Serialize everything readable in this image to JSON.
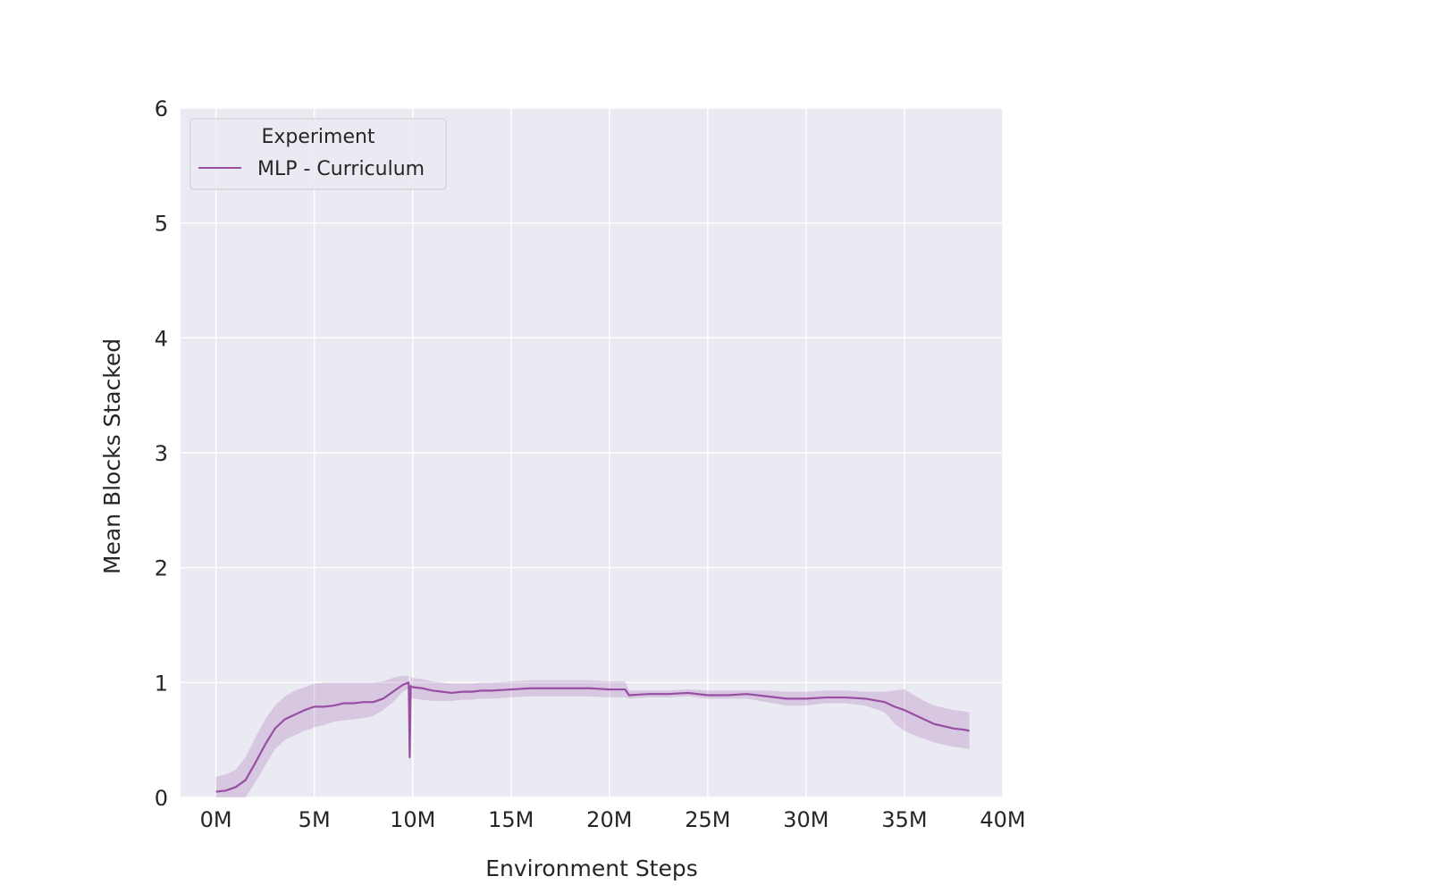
{
  "chart_data": {
    "type": "line",
    "title": "",
    "xlabel": "Environment Steps",
    "ylabel": "Mean Blocks Stacked",
    "xlim": [
      -1.8,
      40
    ],
    "ylim": [
      0,
      6
    ],
    "x_ticks": [
      0,
      5,
      10,
      15,
      20,
      25,
      30,
      35,
      40
    ],
    "x_tick_labels": [
      "0M",
      "5M",
      "10M",
      "15M",
      "20M",
      "25M",
      "30M",
      "35M",
      "40M"
    ],
    "y_ticks": [
      0,
      1,
      2,
      3,
      4,
      5,
      6
    ],
    "y_tick_labels": [
      "0",
      "1",
      "2",
      "3",
      "4",
      "5",
      "6"
    ],
    "x_unit": "M environment steps",
    "grid": true,
    "background": "#eaeaf2",
    "legend": {
      "title": "Experiment",
      "position": "top-left"
    },
    "series": [
      {
        "name": "MLP - Curriculum",
        "color": "#984ea3",
        "x": [
          0.0,
          0.5,
          1.0,
          1.5,
          2.0,
          2.5,
          3.0,
          3.5,
          4.0,
          4.5,
          5.0,
          5.5,
          6.0,
          6.5,
          7.0,
          7.5,
          8.0,
          8.5,
          9.0,
          9.5,
          9.8,
          9.85,
          9.9,
          10.0,
          10.5,
          11.0,
          11.5,
          12.0,
          12.5,
          13.0,
          13.5,
          14.0,
          15.0,
          16.0,
          17.0,
          18.0,
          19.0,
          20.0,
          20.8,
          21.0,
          22.0,
          23.0,
          24.0,
          25.0,
          26.0,
          27.0,
          28.0,
          29.0,
          30.0,
          31.0,
          32.0,
          33.0,
          34.0,
          34.5,
          35.0,
          35.5,
          36.0,
          36.5,
          37.0,
          37.5,
          38.0,
          38.3
        ],
        "y": [
          0.05,
          0.06,
          0.09,
          0.15,
          0.3,
          0.46,
          0.6,
          0.68,
          0.72,
          0.76,
          0.79,
          0.79,
          0.8,
          0.82,
          0.82,
          0.83,
          0.83,
          0.86,
          0.92,
          0.98,
          1.0,
          0.35,
          0.97,
          0.96,
          0.95,
          0.93,
          0.92,
          0.91,
          0.92,
          0.92,
          0.93,
          0.93,
          0.94,
          0.95,
          0.95,
          0.95,
          0.95,
          0.94,
          0.94,
          0.89,
          0.9,
          0.9,
          0.91,
          0.89,
          0.89,
          0.9,
          0.88,
          0.86,
          0.86,
          0.87,
          0.87,
          0.86,
          0.83,
          0.79,
          0.76,
          0.72,
          0.68,
          0.64,
          0.62,
          0.6,
          0.59,
          0.58
        ],
        "ci_low": [
          0.0,
          0.0,
          0.0,
          0.0,
          0.13,
          0.28,
          0.42,
          0.5,
          0.54,
          0.58,
          0.61,
          0.63,
          0.66,
          0.67,
          0.68,
          0.69,
          0.71,
          0.76,
          0.83,
          0.92,
          0.95,
          0.25,
          0.87,
          0.86,
          0.85,
          0.84,
          0.84,
          0.84,
          0.85,
          0.85,
          0.86,
          0.86,
          0.87,
          0.88,
          0.88,
          0.88,
          0.88,
          0.87,
          0.87,
          0.86,
          0.87,
          0.87,
          0.88,
          0.86,
          0.86,
          0.86,
          0.83,
          0.8,
          0.8,
          0.82,
          0.82,
          0.8,
          0.74,
          0.64,
          0.58,
          0.54,
          0.51,
          0.48,
          0.46,
          0.44,
          0.43,
          0.42
        ],
        "ci_high": [
          0.18,
          0.2,
          0.24,
          0.35,
          0.52,
          0.68,
          0.8,
          0.88,
          0.93,
          0.96,
          0.99,
          1.0,
          1.0,
          1.0,
          1.0,
          1.0,
          1.0,
          1.01,
          1.04,
          1.06,
          1.06,
          0.5,
          1.05,
          1.04,
          1.03,
          1.01,
          1.0,
          0.99,
          0.99,
          0.99,
          1.0,
          1.0,
          1.01,
          1.02,
          1.02,
          1.02,
          1.02,
          1.01,
          1.01,
          0.93,
          0.93,
          0.93,
          0.94,
          0.93,
          0.93,
          0.93,
          0.93,
          0.92,
          0.92,
          0.93,
          0.93,
          0.92,
          0.92,
          0.93,
          0.94,
          0.89,
          0.84,
          0.8,
          0.78,
          0.76,
          0.75,
          0.74
        ]
      }
    ]
  }
}
